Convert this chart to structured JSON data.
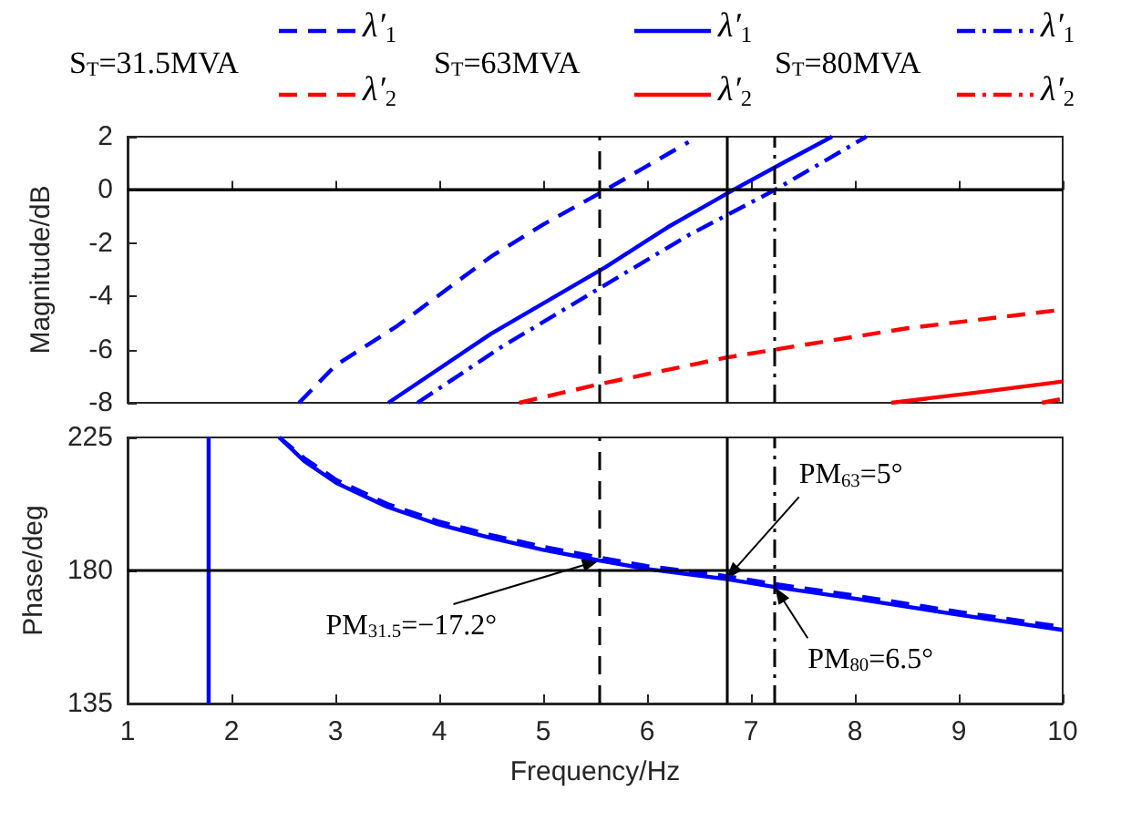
{
  "chart_data": [
    {
      "type": "line",
      "ylabel": "Magnitude/dB",
      "xlim": [
        1,
        10
      ],
      "xticks": [
        1,
        2,
        3,
        4,
        5,
        6,
        7,
        8,
        9,
        10
      ],
      "ylim": [
        -8,
        2
      ],
      "yticks": [
        -8,
        -6,
        -4,
        -2,
        0,
        2
      ],
      "tick_labels": "y",
      "grid": false,
      "legend": "top",
      "marker": "none",
      "annotations": [
        "S$_{T}$=31.5MVA",
        "S$_{T}$=63MVA",
        "S$_{T}$=80MVA"
      ],
      "ref_lines": [
        {
          "axis": "y",
          "value": 0,
          "color": "#000000",
          "line_style": "solid"
        },
        {
          "axis": "x",
          "value": 5.54,
          "color": "#000000",
          "line_style": "dashed"
        },
        {
          "axis": "x",
          "value": 6.76,
          "color": "#000000",
          "line_style": "solid"
        },
        {
          "axis": "x",
          "value": 7.23,
          "color": "#000000",
          "line_style": "dashdot"
        }
      ],
      "series": [
        {
          "name": "λ′$_{1}$",
          "color": "#0000ff",
          "line_style": "dashed",
          "x": [
            2.65,
            3.0,
            3.6,
            4.5,
            5.0,
            5.6,
            6.0,
            6.4
          ],
          "values": [
            -8,
            -6.6,
            -5.1,
            -2.5,
            -1.3,
            0,
            0.9,
            1.8
          ]
        },
        {
          "name": "λ′$_{2}$",
          "color": "#ff0000",
          "line_style": "dashed",
          "x": [
            4.77,
            5.54,
            6.76,
            7.23,
            8.5,
            10
          ],
          "values": [
            -8,
            -7.3,
            -6.3,
            -6.0,
            -5.2,
            -4.5
          ]
        },
        {
          "name": "λ′$_{1}$",
          "color": "#0000ff",
          "line_style": "solid",
          "x": [
            3.51,
            4.5,
            5.6,
            6.2,
            6.83,
            7.3,
            7.78
          ],
          "values": [
            -8,
            -5.4,
            -2.9,
            -1.4,
            0,
            1,
            2
          ]
        },
        {
          "name": "λ′$_{2}$",
          "color": "#ff0000",
          "line_style": "solid",
          "x": [
            8.35,
            9.2,
            10
          ],
          "values": [
            -8,
            -7.6,
            -7.2
          ]
        },
        {
          "name": "λ′$_{1}$",
          "color": "#0000ff",
          "line_style": "dashdot",
          "x": [
            3.79,
            4.6,
            5.54,
            6.4,
            7.23,
            8.11
          ],
          "values": [
            -8,
            -5.9,
            -3.7,
            -1.7,
            0,
            2
          ]
        },
        {
          "name": "λ′$_{2}$",
          "color": "#ff0000",
          "line_style": "dashdot",
          "x": [
            9.8,
            10
          ],
          "values": [
            -8,
            -7.85
          ]
        }
      ]
    },
    {
      "type": "line",
      "xlabel": "Frequency/Hz",
      "ylabel": "Phase/deg",
      "xlim": [
        1,
        10
      ],
      "xticks": [
        1,
        2,
        3,
        4,
        5,
        6,
        7,
        8,
        9,
        10
      ],
      "ylim": [
        135,
        225
      ],
      "yticks": [
        135,
        180,
        225
      ],
      "grid": false,
      "marker": "none",
      "annotations": [
        {
          "text": "PM$_{31.5}$=−17.2°",
          "x": 5.54,
          "y": 183.4
        },
        {
          "text": "PM$_{63}$=5°",
          "x": 6.76,
          "y": 177.1
        },
        {
          "text": "PM$_{80}$=6.5°",
          "x": 7.23,
          "y": 174.4
        }
      ],
      "ref_lines": [
        {
          "axis": "y",
          "value": 180,
          "color": "#000000",
          "line_style": "solid"
        },
        {
          "axis": "x",
          "value": 5.54,
          "color": "#000000",
          "line_style": "dashed"
        },
        {
          "axis": "x",
          "value": 6.76,
          "color": "#000000",
          "line_style": "solid"
        },
        {
          "axis": "x",
          "value": 7.23,
          "color": "#000000",
          "line_style": "dashdot"
        }
      ],
      "series": [
        {
          "color": "#0000ff",
          "line_style": "dashed",
          "x": [
            2.46,
            2.7,
            3.01,
            3.5,
            4.0,
            4.5,
            5.0,
            5.54,
            6.0,
            6.76,
            7.23,
            8,
            9,
            10
          ],
          "values": [
            225,
            218,
            210.6,
            202.5,
            196.5,
            192,
            188,
            184.4,
            181.5,
            178.1,
            175.4,
            171.5,
            166,
            160.9
          ]
        },
        {
          "color": "#0000ff",
          "line_style": "solid",
          "x": [
            1.78,
            1.78,
            2.0,
            2.46,
            2.7,
            3.01,
            3.5,
            4.0,
            4.5,
            5.0,
            5.54,
            6.0,
            6.76,
            7.23,
            8,
            9,
            10
          ],
          "values": [
            135,
            225,
            null,
            225,
            217,
            209.6,
            201.5,
            195.5,
            191,
            187,
            183.4,
            180.5,
            177.1,
            174.4,
            170.5,
            165,
            159.9
          ]
        }
      ]
    }
  ]
}
